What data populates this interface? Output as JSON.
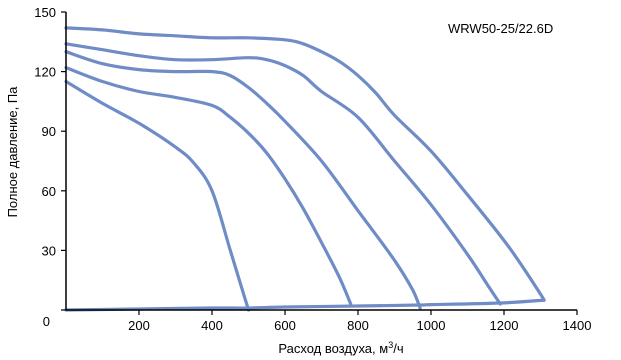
{
  "chart_data": {
    "type": "line",
    "title": "",
    "model_label": "WRW50-25/22.6D",
    "xlabel": "Расход воздуха, м",
    "xlabel_sup": "3",
    "xlabel_suffix": "/ч",
    "ylabel": "Полное давление, Па",
    "xlim": [
      0,
      1400
    ],
    "ylim": [
      0,
      150
    ],
    "x_ticks": [
      200,
      400,
      600,
      800,
      1000,
      1200,
      1400
    ],
    "y_ticks": [
      0,
      30,
      60,
      90,
      120,
      150
    ],
    "grid": false,
    "legend": "none",
    "colors": {
      "curve": "#6f8cc7",
      "axis": "#000000"
    },
    "series": [
      {
        "points": [
          [
            0,
            142
          ],
          [
            100,
            141
          ],
          [
            200,
            139
          ],
          [
            300,
            138
          ],
          [
            400,
            137
          ],
          [
            500,
            137
          ],
          [
            600,
            136
          ],
          [
            650,
            134
          ],
          [
            700,
            130
          ],
          [
            750,
            125
          ],
          [
            800,
            118
          ],
          [
            850,
            109
          ],
          [
            900,
            98
          ],
          [
            1000,
            80
          ],
          [
            1100,
            58
          ],
          [
            1200,
            35
          ],
          [
            1250,
            22
          ],
          [
            1300,
            8
          ],
          [
            1310,
            5
          ]
        ]
      },
      {
        "points": [
          [
            0,
            134
          ],
          [
            100,
            131
          ],
          [
            200,
            128
          ],
          [
            300,
            126
          ],
          [
            400,
            126
          ],
          [
            500,
            127
          ],
          [
            550,
            126
          ],
          [
            600,
            123
          ],
          [
            650,
            118
          ],
          [
            700,
            110
          ],
          [
            800,
            97
          ],
          [
            900,
            75
          ],
          [
            1000,
            53
          ],
          [
            1100,
            28
          ],
          [
            1150,
            14
          ],
          [
            1190,
            3
          ]
        ]
      },
      {
        "points": [
          [
            0,
            130
          ],
          [
            100,
            124
          ],
          [
            200,
            121
          ],
          [
            300,
            120
          ],
          [
            400,
            120
          ],
          [
            450,
            118
          ],
          [
            500,
            112
          ],
          [
            550,
            104
          ],
          [
            600,
            95
          ],
          [
            700,
            75
          ],
          [
            800,
            50
          ],
          [
            900,
            25
          ],
          [
            950,
            10
          ],
          [
            970,
            1
          ]
        ]
      },
      {
        "points": [
          [
            0,
            122
          ],
          [
            100,
            115
          ],
          [
            200,
            110
          ],
          [
            300,
            107
          ],
          [
            400,
            103
          ],
          [
            450,
            97
          ],
          [
            500,
            89
          ],
          [
            550,
            79
          ],
          [
            600,
            66
          ],
          [
            650,
            51
          ],
          [
            700,
            34
          ],
          [
            750,
            16
          ],
          [
            780,
            3
          ]
        ]
      },
      {
        "points": [
          [
            0,
            115
          ],
          [
            100,
            104
          ],
          [
            200,
            94
          ],
          [
            300,
            82
          ],
          [
            350,
            74
          ],
          [
            400,
            60
          ],
          [
            450,
            30
          ],
          [
            480,
            12
          ],
          [
            500,
            0
          ]
        ]
      },
      {
        "points": [
          [
            0,
            0
          ],
          [
            200,
            0.5
          ],
          [
            400,
            1
          ],
          [
            500,
            1
          ],
          [
            600,
            1.5
          ],
          [
            800,
            2
          ],
          [
            970,
            2.5
          ],
          [
            1000,
            2.7
          ],
          [
            1190,
            3.5
          ],
          [
            1310,
            5
          ]
        ]
      }
    ]
  }
}
